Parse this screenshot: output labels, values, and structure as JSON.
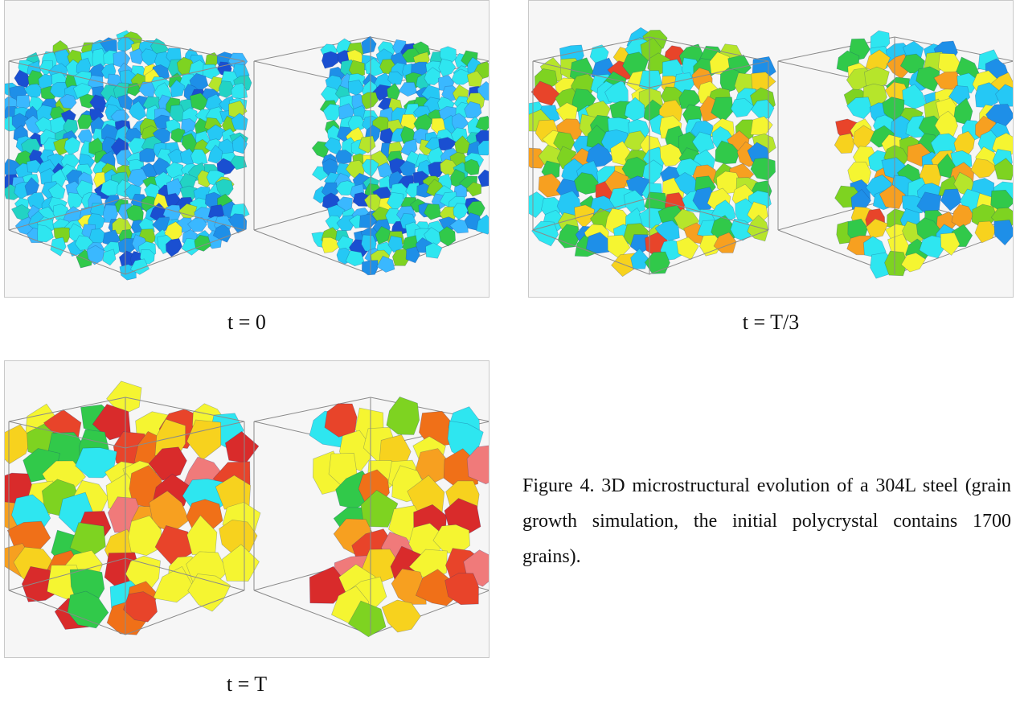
{
  "panels": [
    {
      "time_label": "t = 0",
      "stage": "initial",
      "palette": [
        "#2ee6f0",
        "#25c8f5",
        "#1e8fe8",
        "#1a4fd1",
        "#3ab8ff",
        "#22d3c4",
        "#31c94a",
        "#7ed321",
        "#b6e52b",
        "#f5f531"
      ],
      "weights": [
        24,
        18,
        14,
        8,
        10,
        6,
        8,
        5,
        3,
        2
      ]
    },
    {
      "time_label": "t = T/3",
      "stage": "intermediate",
      "palette": [
        "#2ee6f0",
        "#25c8f5",
        "#1e8fe8",
        "#31c94a",
        "#7ed321",
        "#b6e52b",
        "#f5f531",
        "#f7d21e",
        "#f7a020",
        "#e8442a"
      ],
      "weights": [
        18,
        10,
        5,
        12,
        10,
        8,
        14,
        8,
        5,
        3
      ]
    },
    {
      "time_label": "t = T",
      "stage": "final",
      "palette": [
        "#2ee6f0",
        "#31c94a",
        "#7ed321",
        "#f5f531",
        "#f7d21e",
        "#f7a020",
        "#f07018",
        "#e8442a",
        "#d92b2b",
        "#f07a7a"
      ],
      "weights": [
        6,
        10,
        6,
        18,
        10,
        8,
        10,
        8,
        6,
        5
      ]
    }
  ],
  "figure_caption": "Figure 4. 3D microstructural evolution of a 304L steel (grain growth simulation, the initial polycrystal contains 1700 grains)."
}
